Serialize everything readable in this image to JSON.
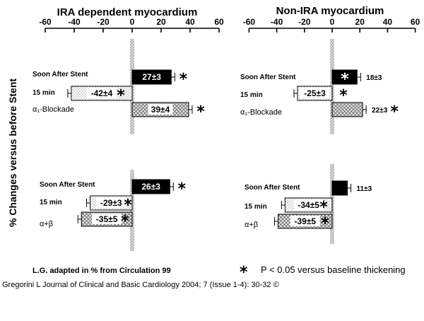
{
  "chart_data": [
    {
      "type": "bar",
      "title": "IRA dependent myocardium",
      "section": "top",
      "xlim": [
        -60,
        60
      ],
      "ticks": [
        -60,
        -40,
        -20,
        0,
        20,
        40,
        60
      ],
      "tick_labels": [
        "-60",
        "-40",
        "-20",
        "0",
        "20",
        "40",
        "60"
      ],
      "bars": [
        {
          "category": "Soon After Stent",
          "value": 27,
          "label": "27±3",
          "pattern": "solid",
          "significant": true
        },
        {
          "category": "15 min",
          "value": -42,
          "label": "-42±4",
          "pattern": "dots",
          "significant": true
        },
        {
          "category": "α₁-Blockade",
          "value": 39,
          "label": "39±4",
          "pattern": "cross",
          "significant": true
        }
      ]
    },
    {
      "type": "bar",
      "title": "IRA dependent myocardium",
      "section": "bottom",
      "xlim": [
        -60,
        60
      ],
      "bars": [
        {
          "category": "Soon After Stent",
          "value": 26,
          "label": "26±3",
          "pattern": "solid",
          "significant": true
        },
        {
          "category": "15 min",
          "value": -29,
          "label": "-29±3",
          "pattern": "dots",
          "significant": true
        },
        {
          "category": "α+β",
          "value": -35,
          "label": "-35±5",
          "pattern": "cross",
          "significant": true
        }
      ]
    },
    {
      "type": "bar",
      "title": "Non-IRA myocardium",
      "section": "top",
      "xlim": [
        -60,
        60
      ],
      "ticks": [
        -60,
        -40,
        -20,
        0,
        20,
        40,
        60
      ],
      "tick_labels": [
        "-60",
        "-40",
        "-20",
        "0",
        "20",
        "40",
        "60"
      ],
      "bars": [
        {
          "category": "Soon After Stent",
          "value": 18,
          "label": "18±3",
          "pattern": "solid",
          "significant": true
        },
        {
          "category": "15 min",
          "value": -25,
          "label": "-25±3",
          "pattern": "dots",
          "significant": true
        },
        {
          "category": "α₁-Blockade",
          "value": 22,
          "label": "22±3",
          "pattern": "cross",
          "significant": true
        }
      ]
    },
    {
      "type": "bar",
      "title": "Non-IRA myocardium",
      "section": "bottom",
      "xlim": [
        -60,
        60
      ],
      "bars": [
        {
          "category": "Soon After Stent",
          "value": 11,
          "label": "11±3",
          "pattern": "solid",
          "significant": false
        },
        {
          "category": "15 min",
          "value": -34,
          "label": "-34±5",
          "pattern": "dots",
          "significant": true
        },
        {
          "category": "α+β",
          "value": -39,
          "label": "-39±5",
          "pattern": "cross",
          "significant": true
        }
      ]
    }
  ],
  "text": {
    "left_title": "IRA dependent myocardium",
    "right_title": "Non-IRA myocardium",
    "ylabel": "% Changes versus before Stent",
    "cat_soon": "Soon After Stent",
    "cat_15": "15 min",
    "cat_alpha1": "α₁-Blockade",
    "cat_ab": "α+β",
    "footnote_left": "L.G. adapted in % from Circulation 99",
    "star_symbol": "*",
    "footnote_right": "P < 0.05 versus baseline thickening",
    "citation": "Gregorini L Journal of Clinical and Basic Cardiology 2004; 7 (Issue 1-4): 30-32 ©"
  },
  "colors": {
    "bar_solid": "#000000",
    "bar_dots": "#ffffff",
    "bar_cross": "#d9d9d9",
    "zero_band": "#cccccc",
    "text": "#000000"
  }
}
